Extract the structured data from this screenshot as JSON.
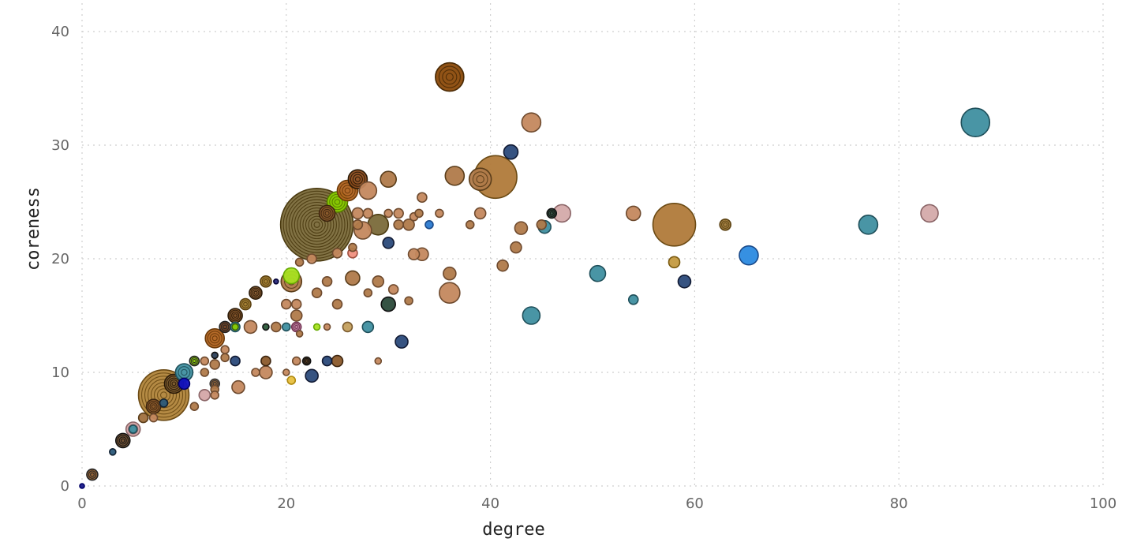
{
  "chart_data": {
    "type": "scatter",
    "title": "",
    "xlabel": "degree",
    "ylabel": "coreness",
    "xlim": [
      0,
      100
    ],
    "ylim": [
      0,
      40
    ],
    "xticks": [
      "0",
      "20",
      "40",
      "60",
      "80",
      "100"
    ],
    "yticks": [
      "0",
      "10",
      "20",
      "30",
      "40"
    ],
    "grid": true,
    "legend": "none",
    "points": [
      {
        "x": 0,
        "y": 0,
        "r": 3,
        "fill": "#1a1a8c",
        "stroke": "#000066"
      },
      {
        "x": 1,
        "y": 1,
        "r": 7,
        "fill": "#8b5a2b",
        "stroke": "#222222",
        "rings": 2
      },
      {
        "x": 3,
        "y": 3,
        "r": 4,
        "fill": "#2b5a7a",
        "stroke": "#112233"
      },
      {
        "x": 4,
        "y": 4,
        "r": 9,
        "fill": "#6b4a2a",
        "stroke": "#111111",
        "rings": 3
      },
      {
        "x": 5,
        "y": 5,
        "r": 9,
        "fill": "#d4a6a8",
        "stroke": "#8a6466",
        "rings": 2
      },
      {
        "x": 5,
        "y": 5,
        "r": 5,
        "fill": "#3f8fa0",
        "stroke": "#1f4f5a"
      },
      {
        "x": 6,
        "y": 6,
        "r": 6,
        "fill": "#a0703e",
        "stroke": "#5a3d1a"
      },
      {
        "x": 7,
        "y": 6,
        "r": 5,
        "fill": "#c4885e",
        "stroke": "#6e4a2e"
      },
      {
        "x": 7,
        "y": 7,
        "r": 9,
        "fill": "#8b5a2b",
        "stroke": "#3d250f",
        "rings": 3
      },
      {
        "x": 8,
        "y": 8,
        "r": 32,
        "fill": "#b0843a",
        "stroke": "#6b4a14",
        "rings": 7
      },
      {
        "x": 8,
        "y": 7.3,
        "r": 5,
        "fill": "#2b5a7a",
        "stroke": "#112233"
      },
      {
        "x": 9,
        "y": 9,
        "r": 12,
        "fill": "#7a5a2e",
        "stroke": "#2a1a08",
        "rings": 4
      },
      {
        "x": 10,
        "y": 10,
        "r": 11,
        "fill": "#3f8fa0",
        "stroke": "#1f4f5a",
        "rings": 2
      },
      {
        "x": 10,
        "y": 9,
        "r": 7,
        "fill": "#1010c0",
        "stroke": "#000066"
      },
      {
        "x": 11,
        "y": 11,
        "r": 6,
        "fill": "#88cc00",
        "stroke": "#222222",
        "rings": 2
      },
      {
        "x": 11,
        "y": 7,
        "r": 5,
        "fill": "#b07a4a",
        "stroke": "#6e4a2e"
      },
      {
        "x": 12,
        "y": 8,
        "r": 7,
        "fill": "#d4a6a8",
        "stroke": "#8a6466"
      },
      {
        "x": 12,
        "y": 10,
        "r": 5,
        "fill": "#b07a4a",
        "stroke": "#6e4a2e"
      },
      {
        "x": 12,
        "y": 11,
        "r": 5,
        "fill": "#c4885e",
        "stroke": "#6e4a2e"
      },
      {
        "x": 13,
        "y": 11.5,
        "r": 4,
        "fill": "#2b3f5a",
        "stroke": "#111111"
      },
      {
        "x": 13,
        "y": 10.7,
        "r": 6,
        "fill": "#b07a4a",
        "stroke": "#6e4a2e"
      },
      {
        "x": 13,
        "y": 13,
        "r": 12,
        "fill": "#b0621e",
        "stroke": "#6b3a0a",
        "rings": 3
      },
      {
        "x": 13,
        "y": 9,
        "r": 6,
        "fill": "#8b5a2b",
        "stroke": "#333333",
        "rings": 2
      },
      {
        "x": 13,
        "y": 8.5,
        "r": 5,
        "fill": "#b07a4a",
        "stroke": "#6e4a2e"
      },
      {
        "x": 13,
        "y": 8,
        "r": 5,
        "fill": "#c4885e",
        "stroke": "#6e4a2e"
      },
      {
        "x": 14,
        "y": 14,
        "r": 7,
        "fill": "#6b3a1a",
        "stroke": "#222222",
        "rings": 2
      },
      {
        "x": 14,
        "y": 12,
        "r": 5,
        "fill": "#c4885e",
        "stroke": "#6e4a2e"
      },
      {
        "x": 14,
        "y": 11.3,
        "r": 5,
        "fill": "#b07a4a",
        "stroke": "#6e4a2e"
      },
      {
        "x": 15,
        "y": 15,
        "r": 9,
        "fill": "#7a4a1e",
        "stroke": "#2a1a08",
        "rings": 3
      },
      {
        "x": 15,
        "y": 14,
        "r": 6,
        "fill": "#3f8fa0",
        "stroke": "#1f4f5a"
      },
      {
        "x": 15,
        "y": 14,
        "r": 4,
        "fill": "#88cc00",
        "stroke": "#446600"
      },
      {
        "x": 15,
        "y": 11,
        "r": 6,
        "fill": "#2b4a7a",
        "stroke": "#111a33"
      },
      {
        "x": 15.3,
        "y": 8.7,
        "r": 8,
        "fill": "#c4885e",
        "stroke": "#6e4a2e"
      },
      {
        "x": 16,
        "y": 16,
        "r": 7,
        "fill": "#a07a2a",
        "stroke": "#5a4010",
        "rings": 2
      },
      {
        "x": 16.5,
        "y": 14,
        "r": 8,
        "fill": "#c4885e",
        "stroke": "#6e4a2e"
      },
      {
        "x": 17,
        "y": 17,
        "r": 8,
        "fill": "#8b5a2b",
        "stroke": "#2a1a08",
        "rings": 3
      },
      {
        "x": 17,
        "y": 10,
        "r": 5,
        "fill": "#c4885e",
        "stroke": "#6e4a2e"
      },
      {
        "x": 18,
        "y": 18,
        "r": 7,
        "fill": "#a07a2a",
        "stroke": "#5a4010",
        "rings": 2
      },
      {
        "x": 18,
        "y": 14,
        "r": 4,
        "fill": "#2b5a3a",
        "stroke": "#111111"
      },
      {
        "x": 18,
        "y": 11,
        "r": 6,
        "fill": "#8b5a2b",
        "stroke": "#3d250f"
      },
      {
        "x": 18,
        "y": 10,
        "r": 8,
        "fill": "#c4885e",
        "stroke": "#6e4a2e"
      },
      {
        "x": 19,
        "y": 18,
        "r": 3,
        "fill": "#2a2a7a",
        "stroke": "#000033"
      },
      {
        "x": 19,
        "y": 14,
        "r": 6,
        "fill": "#b07a4a",
        "stroke": "#6e4a2e"
      },
      {
        "x": 20,
        "y": 16,
        "r": 6,
        "fill": "#c4885e",
        "stroke": "#6e4a2e"
      },
      {
        "x": 20,
        "y": 14,
        "r": 5,
        "fill": "#3f8fa0",
        "stroke": "#1f4f5a"
      },
      {
        "x": 20,
        "y": 10,
        "r": 4,
        "fill": "#c4885e",
        "stroke": "#6e4a2e"
      },
      {
        "x": 20.5,
        "y": 18.5,
        "r": 10,
        "fill": "#a8e020",
        "stroke": "#66aa00"
      },
      {
        "x": 20.5,
        "y": 18,
        "r": 13,
        "fill": "#b07a4a",
        "stroke": "#5a3d1a",
        "rings": 2
      },
      {
        "x": 20.5,
        "y": 9.3,
        "r": 5,
        "fill": "#e8c040",
        "stroke": "#b08a10"
      },
      {
        "x": 21,
        "y": 16,
        "r": 6,
        "fill": "#c4885e",
        "stroke": "#6e4a2e"
      },
      {
        "x": 21,
        "y": 15,
        "r": 7,
        "fill": "#b07a4a",
        "stroke": "#6e4a2e"
      },
      {
        "x": 21,
        "y": 14,
        "r": 6,
        "fill": "#c080a0",
        "stroke": "#703050",
        "rings": 2
      },
      {
        "x": 21,
        "y": 11,
        "r": 5,
        "fill": "#c4885e",
        "stroke": "#6e4a2e"
      },
      {
        "x": 21.3,
        "y": 13.4,
        "r": 4,
        "fill": "#b07a4a",
        "stroke": "#6e4a2e"
      },
      {
        "x": 21.3,
        "y": 19.7,
        "r": 5,
        "fill": "#b07a4a",
        "stroke": "#6e4a2e"
      },
      {
        "x": 22,
        "y": 11,
        "r": 5,
        "fill": "#5a3a1a",
        "stroke": "#111111",
        "rings": 2
      },
      {
        "x": 22.5,
        "y": 20,
        "r": 6,
        "fill": "#c4885e",
        "stroke": "#6e4a2e"
      },
      {
        "x": 22.5,
        "y": 9.7,
        "r": 8,
        "fill": "#2b4a7a",
        "stroke": "#111a33"
      },
      {
        "x": 23,
        "y": 23,
        "r": 46,
        "fill": "#7a6a3a",
        "stroke": "#4a3a10",
        "rings": 12
      },
      {
        "x": 23,
        "y": 17,
        "r": 6,
        "fill": "#b07a4a",
        "stroke": "#6e4a2e"
      },
      {
        "x": 23,
        "y": 14,
        "r": 4,
        "fill": "#a8e020",
        "stroke": "#66aa00"
      },
      {
        "x": 24,
        "y": 24,
        "r": 10,
        "fill": "#8b5a2b",
        "stroke": "#3d250f",
        "rings": 3
      },
      {
        "x": 24,
        "y": 18,
        "r": 6,
        "fill": "#b07a4a",
        "stroke": "#6e4a2e"
      },
      {
        "x": 24,
        "y": 14,
        "r": 4,
        "fill": "#c4885e",
        "stroke": "#6e4a2e"
      },
      {
        "x": 24,
        "y": 11,
        "r": 6,
        "fill": "#2b4a7a",
        "stroke": "#111a33"
      },
      {
        "x": 25,
        "y": 25,
        "r": 13,
        "fill": "#88cc00",
        "stroke": "#557a00",
        "rings": 3
      },
      {
        "x": 25,
        "y": 20.5,
        "r": 6,
        "fill": "#c4885e",
        "stroke": "#6e4a2e"
      },
      {
        "x": 25,
        "y": 16,
        "r": 6,
        "fill": "#b07a4a",
        "stroke": "#6e4a2e"
      },
      {
        "x": 25,
        "y": 11,
        "r": 7,
        "fill": "#8b5a2b",
        "stroke": "#3d250f"
      },
      {
        "x": 26,
        "y": 26,
        "r": 13,
        "fill": "#b0621e",
        "stroke": "#6b3a0a",
        "rings": 3
      },
      {
        "x": 26,
        "y": 14,
        "r": 6,
        "fill": "#c4a05e",
        "stroke": "#7a5a2e"
      },
      {
        "x": 26.5,
        "y": 21,
        "r": 5,
        "fill": "#b07a4a",
        "stroke": "#6e4a2e"
      },
      {
        "x": 26.5,
        "y": 20.5,
        "r": 6,
        "fill": "#f09080",
        "stroke": "#a05040"
      },
      {
        "x": 26.5,
        "y": 18.3,
        "r": 9,
        "fill": "#b07a4a",
        "stroke": "#5a3d1a"
      },
      {
        "x": 27,
        "y": 27,
        "r": 12,
        "fill": "#8b4a1a",
        "stroke": "#2a1a08",
        "rings": 3
      },
      {
        "x": 27,
        "y": 24,
        "r": 7,
        "fill": "#c4885e",
        "stroke": "#6e4a2e"
      },
      {
        "x": 27,
        "y": 23,
        "r": 6,
        "fill": "#b07a4a",
        "stroke": "#6e4a2e"
      },
      {
        "x": 27.5,
        "y": 22.5,
        "r": 11,
        "fill": "#c4885e",
        "stroke": "#6e4a2e"
      },
      {
        "x": 28,
        "y": 26,
        "r": 11,
        "fill": "#c4885e",
        "stroke": "#6e4a2e"
      },
      {
        "x": 28,
        "y": 24,
        "r": 6,
        "fill": "#c4885e",
        "stroke": "#6e4a2e"
      },
      {
        "x": 28,
        "y": 17,
        "r": 5,
        "fill": "#b07a4a",
        "stroke": "#6e4a2e"
      },
      {
        "x": 28,
        "y": 14,
        "r": 7,
        "fill": "#3f8fa0",
        "stroke": "#1f4f5a"
      },
      {
        "x": 29,
        "y": 23,
        "r": 13,
        "fill": "#7a6a3a",
        "stroke": "#4a3a10"
      },
      {
        "x": 29,
        "y": 18,
        "r": 7,
        "fill": "#b07a4a",
        "stroke": "#6e4a2e"
      },
      {
        "x": 29,
        "y": 11,
        "r": 4,
        "fill": "#c4885e",
        "stroke": "#6e4a2e"
      },
      {
        "x": 30,
        "y": 27,
        "r": 10,
        "fill": "#b07a4a",
        "stroke": "#5a3d1a"
      },
      {
        "x": 30,
        "y": 24,
        "r": 5,
        "fill": "#c4885e",
        "stroke": "#6e4a2e"
      },
      {
        "x": 30,
        "y": 21.4,
        "r": 7,
        "fill": "#2b4a7a",
        "stroke": "#111a33"
      },
      {
        "x": 30,
        "y": 16,
        "r": 9,
        "fill": "#2b4a3a",
        "stroke": "#111111"
      },
      {
        "x": 30.5,
        "y": 17.3,
        "r": 6,
        "fill": "#c4885e",
        "stroke": "#6e4a2e"
      },
      {
        "x": 31,
        "y": 24,
        "r": 6,
        "fill": "#c4885e",
        "stroke": "#6e4a2e"
      },
      {
        "x": 31,
        "y": 23,
        "r": 6,
        "fill": "#b07a4a",
        "stroke": "#6e4a2e"
      },
      {
        "x": 31.3,
        "y": 12.7,
        "r": 8,
        "fill": "#2b4a7a",
        "stroke": "#111a33"
      },
      {
        "x": 32,
        "y": 23,
        "r": 7,
        "fill": "#b07a4a",
        "stroke": "#6e4a2e"
      },
      {
        "x": 32,
        "y": 16.3,
        "r": 5,
        "fill": "#b07a4a",
        "stroke": "#6e4a2e"
      },
      {
        "x": 32.5,
        "y": 23.7,
        "r": 5,
        "fill": "#c4885e",
        "stroke": "#6e4a2e"
      },
      {
        "x": 32.5,
        "y": 20.4,
        "r": 7,
        "fill": "#c4885e",
        "stroke": "#6e4a2e"
      },
      {
        "x": 33,
        "y": 24,
        "r": 5,
        "fill": "#b07a4a",
        "stroke": "#6e4a2e"
      },
      {
        "x": 33.3,
        "y": 25.4,
        "r": 6,
        "fill": "#c4885e",
        "stroke": "#6e4a2e"
      },
      {
        "x": 33.3,
        "y": 20.4,
        "r": 8,
        "fill": "#c4885e",
        "stroke": "#6e4a2e"
      },
      {
        "x": 34,
        "y": 23,
        "r": 5,
        "fill": "#2b7ad0",
        "stroke": "#1a4a8a"
      },
      {
        "x": 35,
        "y": 24,
        "r": 5,
        "fill": "#c4885e",
        "stroke": "#6e4a2e"
      },
      {
        "x": 36,
        "y": 36,
        "r": 18,
        "fill": "#8b4a0a",
        "stroke": "#4a2a05",
        "rings": 3
      },
      {
        "x": 36,
        "y": 18.7,
        "r": 8,
        "fill": "#b07a4a",
        "stroke": "#6e4a2e"
      },
      {
        "x": 36,
        "y": 17,
        "r": 13,
        "fill": "#c4885e",
        "stroke": "#6e4a2e"
      },
      {
        "x": 36.5,
        "y": 27.3,
        "r": 12,
        "fill": "#b07a4a",
        "stroke": "#5a3d1a"
      },
      {
        "x": 38,
        "y": 23,
        "r": 5,
        "fill": "#b07a4a",
        "stroke": "#6e4a2e"
      },
      {
        "x": 39,
        "y": 27,
        "r": 14,
        "fill": "#b07a4a",
        "stroke": "#5a3d1a",
        "rings": 2
      },
      {
        "x": 39,
        "y": 24,
        "r": 7,
        "fill": "#c4885e",
        "stroke": "#6e4a2e"
      },
      {
        "x": 40.5,
        "y": 27.2,
        "r": 27,
        "fill": "#b07a3a",
        "stroke": "#6b4a14"
      },
      {
        "x": 41.2,
        "y": 19.4,
        "r": 7,
        "fill": "#b07a4a",
        "stroke": "#6e4a2e"
      },
      {
        "x": 42,
        "y": 29.4,
        "r": 9,
        "fill": "#2b4a7a",
        "stroke": "#111a33"
      },
      {
        "x": 42.5,
        "y": 21,
        "r": 7,
        "fill": "#b07a4a",
        "stroke": "#6e4a2e"
      },
      {
        "x": 43,
        "y": 22.7,
        "r": 8,
        "fill": "#b07a4a",
        "stroke": "#6e4a2e"
      },
      {
        "x": 44,
        "y": 32,
        "r": 12,
        "fill": "#c4885e",
        "stroke": "#6e4a2e"
      },
      {
        "x": 44,
        "y": 15,
        "r": 11,
        "fill": "#3f8fa0",
        "stroke": "#1f4f5a"
      },
      {
        "x": 45,
        "y": 23,
        "r": 6,
        "fill": "#b07a4a",
        "stroke": "#6e4a2e"
      },
      {
        "x": 45.3,
        "y": 22.8,
        "r": 8,
        "fill": "#3f8fa0",
        "stroke": "#1f4f5a"
      },
      {
        "x": 46,
        "y": 24,
        "r": 6,
        "fill": "#2b4a3a",
        "stroke": "#111111",
        "rings": 2
      },
      {
        "x": 47,
        "y": 24,
        "r": 11,
        "fill": "#d4aaaa",
        "stroke": "#8a6466"
      },
      {
        "x": 50.5,
        "y": 18.7,
        "r": 10,
        "fill": "#3f8fa0",
        "stroke": "#1f4f5a"
      },
      {
        "x": 54,
        "y": 24,
        "r": 9,
        "fill": "#c4885e",
        "stroke": "#6e4a2e"
      },
      {
        "x": 54,
        "y": 16.4,
        "r": 6,
        "fill": "#3f8fa0",
        "stroke": "#1f4f5a"
      },
      {
        "x": 58,
        "y": 23,
        "r": 27,
        "fill": "#b07a3a",
        "stroke": "#6b4a14"
      },
      {
        "x": 58,
        "y": 19.7,
        "r": 7,
        "fill": "#c49a40",
        "stroke": "#7a5a10"
      },
      {
        "x": 59,
        "y": 18,
        "r": 8,
        "fill": "#2b4a7a",
        "stroke": "#111a33"
      },
      {
        "x": 63,
        "y": 23,
        "r": 7,
        "fill": "#a07a3a",
        "stroke": "#5a4010",
        "rings": 2
      },
      {
        "x": 65.3,
        "y": 20.3,
        "r": 12,
        "fill": "#2b8ae0",
        "stroke": "#1a4a8a"
      },
      {
        "x": 77,
        "y": 23,
        "r": 12,
        "fill": "#3f8fa0",
        "stroke": "#1f4f5a"
      },
      {
        "x": 83,
        "y": 24,
        "r": 11,
        "fill": "#d4aaaa",
        "stroke": "#8a6466"
      },
      {
        "x": 87.5,
        "y": 32,
        "r": 18,
        "fill": "#3f8fa0",
        "stroke": "#1f4f5a"
      }
    ]
  }
}
